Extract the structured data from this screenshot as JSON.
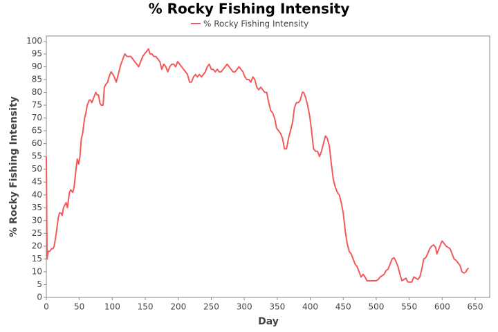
{
  "chart_data": {
    "type": "line",
    "title": "% Rocky Fishing Intensity",
    "x_label": "Day",
    "y_label": "% Rocky Fishing Intensity",
    "x": [
      0,
      1,
      3,
      5,
      8,
      10,
      12,
      15,
      18,
      20,
      22,
      24,
      26,
      28,
      30,
      32,
      35,
      37,
      40,
      42,
      45,
      47,
      49,
      51,
      53,
      55,
      58,
      60,
      62,
      65,
      67,
      69,
      72,
      75,
      77,
      79,
      81,
      83,
      86,
      88,
      90,
      93,
      95,
      98,
      101,
      103,
      106,
      108,
      110,
      113,
      116,
      119,
      122,
      125,
      128,
      131,
      134,
      137,
      140,
      143,
      146,
      149,
      152,
      155,
      157,
      160,
      163,
      166,
      169,
      172,
      175,
      178,
      181,
      184,
      187,
      190,
      193,
      196,
      199,
      202,
      205,
      208,
      211,
      214,
      217,
      220,
      223,
      226,
      229,
      232,
      235,
      238,
      241,
      244,
      247,
      250,
      253,
      256,
      259,
      262,
      265,
      268,
      271,
      274,
      277,
      280,
      283,
      286,
      289,
      292,
      295,
      298,
      301,
      304,
      307,
      310,
      313,
      316,
      319,
      322,
      325,
      328,
      331,
      334,
      337,
      340,
      343,
      346,
      349,
      352,
      355,
      358,
      361,
      364,
      367,
      370,
      373,
      376,
      379,
      382,
      385,
      388,
      390,
      393,
      396,
      399,
      402,
      405,
      408,
      411,
      414,
      417,
      420,
      423,
      426,
      429,
      432,
      435,
      438,
      441,
      444,
      447,
      450,
      453,
      456,
      459,
      462,
      465,
      468,
      471,
      474,
      477,
      480,
      483,
      486,
      490,
      495,
      500,
      503,
      506,
      509,
      512,
      515,
      518,
      521,
      524,
      527,
      530,
      533,
      536,
      539,
      542,
      545,
      548,
      551,
      554,
      557,
      560,
      563,
      566,
      569,
      572,
      575,
      578,
      581,
      584,
      587,
      590,
      592,
      595,
      598,
      600,
      603,
      606,
      609,
      612,
      615,
      618,
      621,
      624,
      627,
      630,
      633,
      636,
      638,
      640
    ],
    "series": [
      {
        "name": "% Rocky Fishing Intensity",
        "color": "#f25a5a",
        "values": [
          55,
          15,
          18,
          18,
          19,
          19,
          20,
          25,
          31,
          33,
          33,
          32,
          35,
          36,
          37,
          35,
          41,
          42,
          41,
          43,
          50,
          54,
          52,
          55,
          62,
          64,
          70,
          72,
          75,
          77,
          77,
          76,
          78,
          80,
          79,
          79,
          76,
          75,
          75,
          82,
          83,
          84,
          86,
          88,
          87,
          86,
          84,
          86,
          88,
          91,
          93,
          95,
          94,
          94,
          94,
          93,
          92,
          91,
          90,
          92,
          94,
          95,
          96,
          97,
          95,
          95,
          94,
          94,
          93,
          92,
          89,
          91,
          90,
          88,
          90,
          91,
          91,
          90,
          92,
          91,
          90,
          89,
          88,
          87,
          84,
          84,
          86,
          87,
          86,
          87,
          86,
          87,
          88,
          90,
          91,
          89,
          89,
          88,
          89,
          88,
          88,
          89,
          90,
          91,
          90,
          89,
          88,
          88,
          89,
          90,
          89,
          88,
          86,
          85,
          85,
          84,
          86,
          85,
          82,
          81,
          82,
          81,
          80,
          80,
          76,
          73,
          72,
          70,
          66,
          65,
          64,
          62,
          58,
          58,
          62,
          65,
          68,
          74,
          76,
          76,
          77,
          80,
          80,
          78,
          75,
          71,
          65,
          58,
          57,
          57,
          55,
          57,
          60,
          63,
          62,
          59,
          52,
          46,
          43,
          41,
          40,
          37,
          33,
          26,
          21,
          18,
          17,
          15,
          13,
          12,
          10,
          8,
          9,
          8,
          6.5,
          6.5,
          6.5,
          6.5,
          7,
          8,
          8.5,
          9,
          10.5,
          11,
          13,
          15,
          15.5,
          14,
          12,
          9,
          6.5,
          7,
          7.5,
          6,
          6,
          6,
          8,
          7.5,
          7,
          8,
          11,
          15,
          15.5,
          17,
          19,
          20,
          20.5,
          19.5,
          17,
          19,
          21,
          22,
          21,
          20,
          19.5,
          19,
          17,
          15,
          14.5,
          13.5,
          12.5,
          10,
          9.5,
          10,
          11,
          11.5
        ]
      }
    ],
    "xlim": [
      0,
      672
    ],
    "ylim": [
      0,
      102
    ],
    "xticks": [
      0,
      50,
      100,
      150,
      200,
      250,
      300,
      350,
      400,
      450,
      500,
      550,
      600,
      650
    ],
    "yticks": [
      0,
      5,
      10,
      15,
      20,
      25,
      30,
      35,
      40,
      45,
      50,
      55,
      60,
      65,
      70,
      75,
      80,
      85,
      90,
      95,
      100
    ]
  }
}
